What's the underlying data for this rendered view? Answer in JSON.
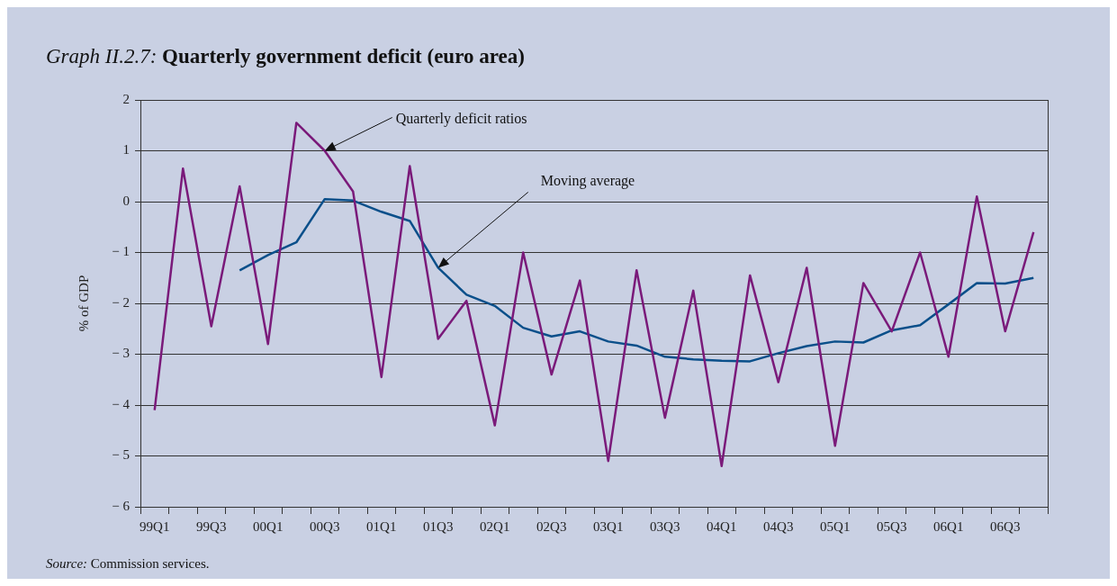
{
  "chart_data": {
    "type": "line",
    "title": "Graph II.2.7: Quarterly government deficit (euro area)",
    "ylabel": "% of GDP",
    "categories": [
      "99Q1",
      null,
      "99Q3",
      null,
      "00Q1",
      null,
      "00Q3",
      null,
      "01Q1",
      null,
      "01Q3",
      null,
      "02Q1",
      null,
      "02Q3",
      null,
      "03Q1",
      null,
      "03Q3",
      null,
      "04Q1",
      null,
      "04Q3",
      null,
      "05Q1",
      null,
      "05Q3",
      null,
      "06Q1",
      null,
      "06Q3",
      null
    ],
    "series": [
      {
        "color": "#7a1a7a",
        "values": [
          -4.1,
          0.65,
          -2.45,
          0.3,
          -2.8,
          1.55,
          1.0,
          0.2,
          -3.45,
          0.7,
          -2.7,
          -1.95,
          -4.4,
          -1.0,
          -3.4,
          -1.55,
          -5.1,
          -1.35,
          -4.25,
          -1.75,
          -5.2,
          -1.45,
          -3.55,
          -1.3,
          -4.8,
          -1.6,
          -2.55,
          -1.0,
          -3.05,
          0.1,
          -2.55,
          -0.6
        ]
      },
      {
        "color": "#0a4f8a",
        "values": [
          null,
          null,
          null,
          -1.35,
          -1.05,
          -0.8,
          0.05,
          0.02,
          -0.2,
          -0.38,
          -1.3,
          -1.83,
          -2.05,
          -2.48,
          -2.65,
          -2.55,
          -2.75,
          -2.83,
          -3.05,
          -3.1,
          -3.13,
          -3.14,
          -2.98,
          -2.84,
          -2.75,
          -2.77,
          -2.53,
          -2.43,
          -2.02,
          -1.6,
          -1.61,
          -1.5
        ]
      }
    ],
    "ylim": [
      -6,
      2
    ],
    "yticks": [
      -6,
      -5,
      -4,
      -3,
      -2,
      -1,
      0,
      1,
      2
    ],
    "grid": "y",
    "legend": false,
    "marker": "none",
    "line_style": "solid",
    "annotations": [
      {
        "text": "Quarterly deficit ratios",
        "x": "00Q3",
        "y": 1.0
      },
      {
        "text": "Moving average",
        "x": "01Q3",
        "y": -1.3
      },
      "Source: Commission services."
    ]
  }
}
